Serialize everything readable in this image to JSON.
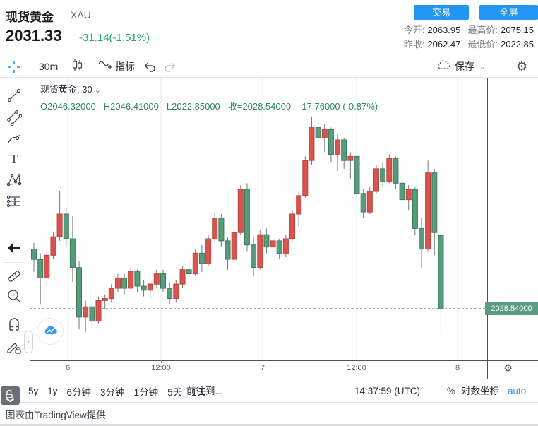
{
  "header": {
    "symbol_name": "现货黄金",
    "symbol_code": "XAU",
    "trade_button": "交易",
    "fullscreen_button": "全屏",
    "last_price": "2031.33",
    "change": "-31.14(-1.51%)",
    "stats_rows": [
      [
        {
          "label": "今开:",
          "value": "2063.95"
        },
        {
          "label": "最高价:",
          "value": "2075.15"
        }
      ],
      [
        {
          "label": "昨收:",
          "value": "2062.47"
        },
        {
          "label": "最低价:",
          "value": "2022.85"
        }
      ]
    ]
  },
  "toolbar": {
    "interval": "30m",
    "indicators_label": "指标",
    "save_label": "保存"
  },
  "icons": {
    "gear": "⚙",
    "axis_gear": "⚙",
    "chevron_down": "⌄",
    "collapse": "‹"
  },
  "legend": {
    "title": "现货黄金, 30",
    "values": [
      "O2046.32000",
      "H2046.41000",
      "L2022.85000",
      "收=2028.54000",
      "-17.76000 (-0.87%)"
    ]
  },
  "chart_data": {
    "type": "candlestick",
    "title": "现货黄金, 30",
    "interval_minutes": 30,
    "ylim": [
      2016.0,
      2084.6
    ],
    "grid": "vertical-only",
    "current_price": 2028.54,
    "price_label": "2028.54000",
    "last_ohlc": {
      "open": 2046.32,
      "high": 2046.41,
      "low": 2022.85,
      "close": 2028.54,
      "change": -17.76,
      "change_pct": -0.87
    },
    "x_ticks": [
      {
        "label": "6",
        "x": 54
      },
      {
        "label": "12:00",
        "x": 186
      },
      {
        "label": "7",
        "x": 330
      },
      {
        "label": "12:00",
        "x": 463
      },
      {
        "label": "8",
        "x": 606
      }
    ],
    "colors": {
      "up": "#d9544e",
      "up_border": "#b8443c",
      "down": "#569c7d",
      "down_border": "#39795c",
      "wick": "#75787a",
      "grid": "#e2eaf2",
      "price_line": "#4a9b78",
      "price_label_bg": "#5a9e80"
    },
    "layout": {
      "x0": 6,
      "pitch": 9.15,
      "body_w": 7
    },
    "candles": [
      [
        2043.0,
        2044.5,
        2037.5,
        2040.5
      ],
      [
        2040.5,
        2042.0,
        2029.5,
        2036.0
      ],
      [
        2036.0,
        2042.5,
        2034.0,
        2041.5
      ],
      [
        2041.5,
        2047.0,
        2040.5,
        2046.0
      ],
      [
        2046.0,
        2057.0,
        2045.0,
        2051.5
      ],
      [
        2051.5,
        2053.0,
        2043.5,
        2045.5
      ],
      [
        2045.5,
        2051.0,
        2035.0,
        2038.5
      ],
      [
        2038.5,
        2040.0,
        2023.5,
        2026.5
      ],
      [
        2026.5,
        2030.5,
        2022.9,
        2029.0
      ],
      [
        2029.0,
        2029.5,
        2024.0,
        2025.5
      ],
      [
        2025.5,
        2031.5,
        2025.0,
        2030.5
      ],
      [
        2030.5,
        2032.0,
        2028.5,
        2031.0
      ],
      [
        2031.0,
        2034.5,
        2030.0,
        2033.5
      ],
      [
        2033.5,
        2037.0,
        2032.5,
        2036.0
      ],
      [
        2036.0,
        2037.0,
        2032.0,
        2033.5
      ],
      [
        2033.5,
        2038.5,
        2033.0,
        2037.5
      ],
      [
        2037.5,
        2038.0,
        2032.5,
        2034.0
      ],
      [
        2034.0,
        2035.5,
        2031.5,
        2033.0
      ],
      [
        2033.0,
        2035.0,
        2031.0,
        2034.5
      ],
      [
        2034.5,
        2038.0,
        2033.5,
        2037.0
      ],
      [
        2037.0,
        2038.0,
        2032.5,
        2033.5
      ],
      [
        2033.5,
        2035.0,
        2029.5,
        2031.0
      ],
      [
        2031.0,
        2035.5,
        2030.0,
        2034.5
      ],
      [
        2034.5,
        2039.0,
        2033.5,
        2038.0
      ],
      [
        2038.0,
        2040.5,
        2035.5,
        2037.0
      ],
      [
        2037.0,
        2043.0,
        2036.5,
        2042.0
      ],
      [
        2042.0,
        2044.0,
        2037.5,
        2039.5
      ],
      [
        2039.5,
        2046.5,
        2039.0,
        2045.5
      ],
      [
        2045.5,
        2052.0,
        2044.5,
        2050.5
      ],
      [
        2050.5,
        2051.5,
        2043.5,
        2045.0
      ],
      [
        2045.0,
        2046.0,
        2038.0,
        2040.5
      ],
      [
        2040.5,
        2048.0,
        2040.0,
        2047.0
      ],
      [
        2047.0,
        2058.5,
        2046.5,
        2057.5
      ],
      [
        2057.5,
        2059.0,
        2042.5,
        2044.0
      ],
      [
        2044.0,
        2046.0,
        2036.5,
        2038.5
      ],
      [
        2038.5,
        2047.5,
        2038.0,
        2046.5
      ],
      [
        2046.5,
        2048.0,
        2042.0,
        2043.5
      ],
      [
        2043.5,
        2046.0,
        2041.5,
        2045.0
      ],
      [
        2045.0,
        2045.5,
        2040.5,
        2042.0
      ],
      [
        2042.0,
        2046.5,
        2041.0,
        2045.5
      ],
      [
        2045.5,
        2052.5,
        2045.0,
        2051.5
      ],
      [
        2051.5,
        2057.0,
        2048.5,
        2056.0
      ],
      [
        2056.0,
        2065.5,
        2055.5,
        2064.5
      ],
      [
        2064.5,
        2075.15,
        2063.5,
        2072.5
      ],
      [
        2072.5,
        2074.5,
        2068.0,
        2070.0
      ],
      [
        2070.0,
        2073.5,
        2066.5,
        2072.0
      ],
      [
        2072.0,
        2072.5,
        2064.0,
        2066.0
      ],
      [
        2066.0,
        2071.0,
        2062.0,
        2069.5
      ],
      [
        2069.5,
        2070.0,
        2062.5,
        2064.5
      ],
      [
        2064.5,
        2066.5,
        2060.0,
        2065.5
      ],
      [
        2065.5,
        2066.0,
        2043.5,
        2056.5
      ],
      [
        2056.5,
        2057.5,
        2050.5,
        2052.0
      ],
      [
        2052.0,
        2058.0,
        2051.5,
        2057.0
      ],
      [
        2057.0,
        2063.5,
        2056.5,
        2062.5
      ],
      [
        2062.5,
        2064.0,
        2058.0,
        2059.5
      ],
      [
        2059.5,
        2066.0,
        2059.0,
        2065.0
      ],
      [
        2065.0,
        2065.5,
        2057.5,
        2059.0
      ],
      [
        2059.0,
        2061.0,
        2053.5,
        2055.0
      ],
      [
        2055.0,
        2058.5,
        2052.5,
        2057.5
      ],
      [
        2057.5,
        2058.0,
        2046.5,
        2048.0
      ],
      [
        2048.0,
        2050.5,
        2038.5,
        2043.0
      ],
      [
        2043.0,
        2064.5,
        2042.5,
        2061.5
      ],
      [
        2061.5,
        2062.5,
        2041.5,
        2047.0
      ],
      [
        2046.32,
        2046.41,
        2022.85,
        2028.54
      ]
    ]
  },
  "bottom_toolbar": {
    "ranges": [
      "5y",
      "1y",
      "6分钟",
      "3分钟",
      "1分钟",
      "5天",
      "1天"
    ],
    "goto_label": "前往到...",
    "clock": "14:37:59 (UTC)",
    "percent_label": "%",
    "log_label": "对数坐标",
    "auto_label": "auto"
  },
  "footer": {
    "credit": "图表由TradingView提供"
  }
}
